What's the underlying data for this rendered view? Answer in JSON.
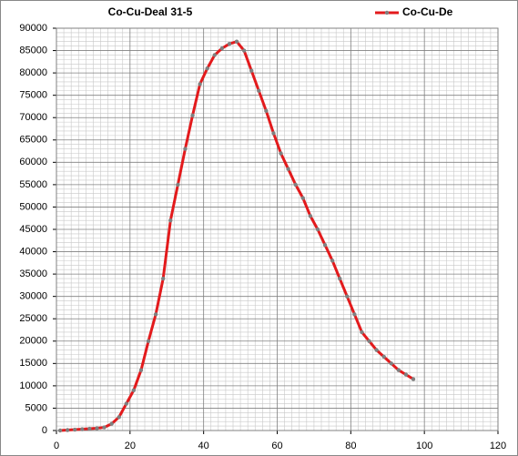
{
  "chart_data": {
    "type": "line",
    "title": "Co-Cu-Deal 31-5",
    "x": [
      1,
      3,
      5,
      7,
      9,
      11,
      13,
      15,
      17,
      19,
      21,
      23,
      25,
      27,
      29,
      31,
      33,
      35,
      37,
      39,
      41,
      43,
      45,
      47,
      49,
      51,
      53,
      55,
      57,
      59,
      61,
      63,
      65,
      67,
      69,
      71,
      73,
      75,
      77,
      79,
      81,
      83,
      85,
      87,
      89,
      91,
      93,
      95,
      97
    ],
    "series": [
      {
        "name": "Co-Cu-De",
        "color": "#e31a1c",
        "marker_color": "#808080",
        "values": [
          0,
          100,
          200,
          300,
          400,
          500,
          700,
          1500,
          3000,
          6000,
          9000,
          13500,
          20000,
          26000,
          34000,
          47000,
          55000,
          63000,
          70500,
          77500,
          81000,
          84000,
          85500,
          86500,
          87000,
          85000,
          80500,
          76000,
          71500,
          66500,
          62000,
          58500,
          55000,
          52000,
          48000,
          45000,
          41500,
          38000,
          34000,
          30000,
          26000,
          22000,
          20000,
          18000,
          16500,
          15000,
          13500,
          12500,
          11500
        ]
      }
    ],
    "xlim": [
      0,
      120
    ],
    "xticks": [
      0,
      20,
      40,
      60,
      80,
      100,
      120
    ],
    "ylim": [
      0,
      90000
    ],
    "yticks": [
      0,
      5000,
      10000,
      15000,
      20000,
      25000,
      30000,
      35000,
      40000,
      45000,
      50000,
      55000,
      60000,
      65000,
      70000,
      75000,
      80000,
      85000,
      90000
    ],
    "grid": true,
    "minor_grid": true,
    "legend": "top-right"
  }
}
